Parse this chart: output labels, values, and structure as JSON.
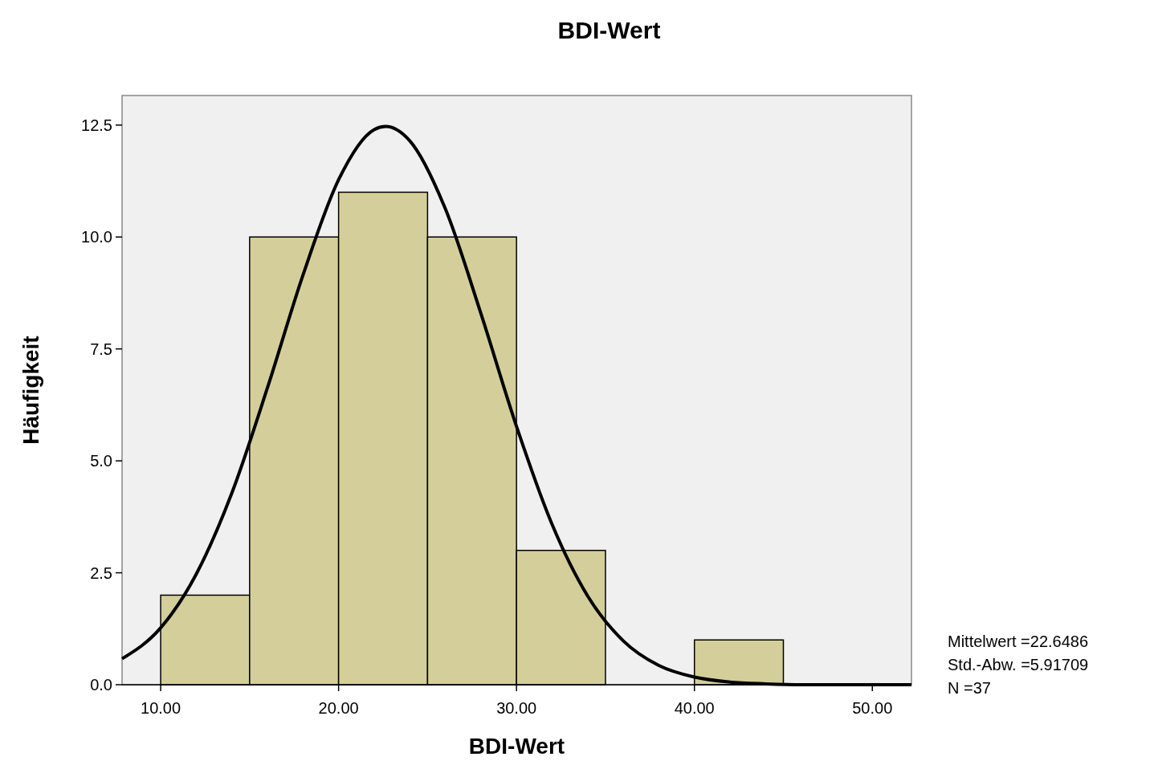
{
  "chart_data": {
    "type": "histogram",
    "title": "BDI-Wert",
    "xlabel": "BDI-Wert",
    "ylabel": "Häufigkeit",
    "bins": [
      10,
      15,
      20,
      25,
      30,
      35,
      40,
      45
    ],
    "values": [
      2,
      10,
      11,
      10,
      3,
      0,
      1
    ],
    "color": "#d4cf9a",
    "series": [
      {
        "type": "line",
        "color": "#000000",
        "x": [
          7.83,
          10,
          12,
          14,
          16,
          18,
          20,
          22,
          22.65,
          24,
          26,
          28,
          30,
          32,
          34,
          36,
          38,
          40,
          42,
          44,
          46,
          48,
          50,
          52.2
        ],
        "values": [
          0.58,
          1.27,
          2.47,
          4.28,
          6.63,
          9.15,
          11.28,
          12.4,
          12.47,
          12.15,
          10.63,
          8.29,
          5.77,
          3.58,
          1.98,
          0.98,
          0.43,
          0.17,
          0.06,
          0.02,
          0,
          0,
          0,
          0
        ]
      }
    ],
    "xlim": [
      7.83,
      52.2
    ],
    "xticks": [
      {
        "value": 10,
        "label": "10.00"
      },
      {
        "value": 20,
        "label": "20.00"
      },
      {
        "value": 30,
        "label": "30.00"
      },
      {
        "value": 40,
        "label": "40.00"
      },
      {
        "value": 50,
        "label": "50.00"
      }
    ],
    "ylim": [
      0,
      13.16
    ],
    "yticks": [
      {
        "value": 0,
        "label": "0.0"
      },
      {
        "value": 2.5,
        "label": "2.5"
      },
      {
        "value": 5,
        "label": "5.0"
      },
      {
        "value": 7.5,
        "label": "7.5"
      },
      {
        "value": 10,
        "label": "10.0"
      },
      {
        "value": 12.5,
        "label": "12.5"
      }
    ],
    "line_style": "solid",
    "marker": "none",
    "annotations": [
      "Mittelwert =22.6486",
      "Std.-Abw. =5.91709",
      "N =37"
    ]
  }
}
